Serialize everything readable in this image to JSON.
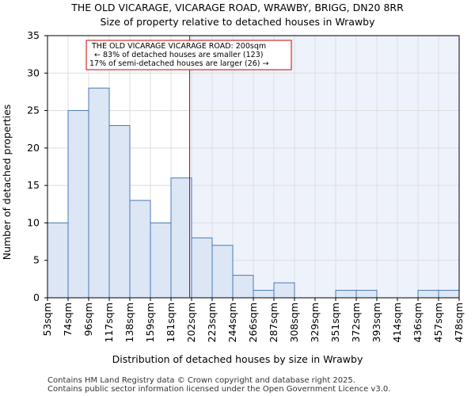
{
  "chart_data": {
    "type": "histogram",
    "title": "THE OLD VICARAGE, VICARAGE ROAD, WRAWBY, BRIGG, DN20 8RR",
    "subtitle": "Size of property relative to detached houses in Wrawby",
    "xlabel": "Distribution of detached houses by size in Wrawby",
    "ylabel": "Number of detached properties",
    "categories": [
      "53sqm",
      "74sqm",
      "96sqm",
      "117sqm",
      "138sqm",
      "159sqm",
      "181sqm",
      "202sqm",
      "223sqm",
      "244sqm",
      "266sqm",
      "287sqm",
      "308sqm",
      "329sqm",
      "351sqm",
      "372sqm",
      "393sqm",
      "414sqm",
      "436sqm",
      "457sqm",
      "478sqm"
    ],
    "values": [
      10,
      25,
      28,
      23,
      13,
      10,
      16,
      8,
      7,
      3,
      1,
      2,
      0,
      0,
      1,
      1,
      0,
      0,
      1,
      1
    ],
    "ylim": [
      0,
      35
    ],
    "yticks": [
      0,
      5,
      10,
      15,
      20,
      25,
      30,
      35
    ],
    "grid": true,
    "subject_value_sqm": 200,
    "annotation": {
      "line1": "THE OLD VICARAGE VICARAGE ROAD: 200sqm",
      "line2": "← 83% of detached houses are smaller (123)",
      "line3": "17% of semi-detached houses are larger (26) →"
    },
    "colors": {
      "bar_fill": "#dce6f5",
      "bar_stroke": "#4a7ab8",
      "subject_line": "#cc0000",
      "shade": "#eef2fb",
      "grid": "#dddddd"
    }
  },
  "footer": {
    "line1": "Contains HM Land Registry data © Crown copyright and database right 2025.",
    "line2": "Contains public sector information licensed under the Open Government Licence v3.0."
  }
}
